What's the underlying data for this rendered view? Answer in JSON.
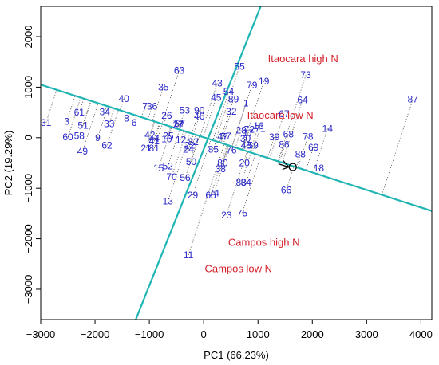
{
  "chart_data": {
    "type": "scatter",
    "subtype": "GGE biplot (which-won-where)",
    "xlabel": "PC1  (66.23%)",
    "ylabel": "PC2  (19.29%)",
    "xlim": [
      -3000,
      4200
    ],
    "ylim": [
      -3600,
      2600
    ],
    "x_ticks": [
      -3000,
      -2000,
      -1000,
      0,
      1000,
      2000,
      3000,
      4000
    ],
    "y_ticks": [
      -3000,
      -2000,
      -1000,
      0,
      1000,
      2000
    ],
    "grid": false,
    "colors": {
      "genotype_labels": "#2a28c8",
      "environment_labels": "#d4202a",
      "polygon_lines": "#1fb5b5",
      "projection_lines": "#555555",
      "axes": "#000000"
    },
    "genotypes": [
      {
        "id": "1",
        "x": 780,
        "y": 680
      },
      {
        "id": "3",
        "x": -2520,
        "y": 320
      },
      {
        "id": "6",
        "x": -1280,
        "y": 300
      },
      {
        "id": "7",
        "x": -1080,
        "y": 620
      },
      {
        "id": "8",
        "x": -1420,
        "y": 380
      },
      {
        "id": "9",
        "x": -1950,
        "y": 0
      },
      {
        "id": "10",
        "x": -680,
        "y": -30
      },
      {
        "id": "11",
        "x": -280,
        "y": -2320
      },
      {
        "id": "12",
        "x": -420,
        "y": -40
      },
      {
        "id": "13",
        "x": -660,
        "y": -1260
      },
      {
        "id": "14",
        "x": 2280,
        "y": 180
      },
      {
        "id": "15",
        "x": -830,
        "y": -600
      },
      {
        "id": "16",
        "x": 1010,
        "y": 230
      },
      {
        "id": "17",
        "x": 820,
        "y": 90
      },
      {
        "id": "18",
        "x": 2120,
        "y": -600
      },
      {
        "id": "19",
        "x": 1110,
        "y": 1120
      },
      {
        "id": "20",
        "x": 750,
        "y": -500
      },
      {
        "id": "21",
        "x": -1060,
        "y": -210
      },
      {
        "id": "22",
        "x": -260,
        "y": -150
      },
      {
        "id": "23",
        "x": 420,
        "y": -1530
      },
      {
        "id": "24",
        "x": -280,
        "y": -230
      },
      {
        "id": "25",
        "x": -650,
        "y": 40
      },
      {
        "id": "26",
        "x": -680,
        "y": 440
      },
      {
        "id": "27",
        "x": -470,
        "y": 260
      },
      {
        "id": "28",
        "x": 690,
        "y": 150
      },
      {
        "id": "29",
        "x": -200,
        "y": -1140
      },
      {
        "id": "30",
        "x": 770,
        "y": -20
      },
      {
        "id": "31",
        "x": -2900,
        "y": 300
      },
      {
        "id": "32",
        "x": 510,
        "y": 520
      },
      {
        "id": "33",
        "x": -1740,
        "y": 270
      },
      {
        "id": "34",
        "x": -1820,
        "y": 510
      },
      {
        "id": "35",
        "x": -740,
        "y": 1000
      },
      {
        "id": "36",
        "x": -950,
        "y": 620
      },
      {
        "id": "37",
        "x": 410,
        "y": 30
      },
      {
        "id": "38",
        "x": 310,
        "y": -620
      },
      {
        "id": "39",
        "x": 1300,
        "y": 10
      },
      {
        "id": "40",
        "x": -1470,
        "y": 770
      },
      {
        "id": "41",
        "x": -910,
        "y": -70
      },
      {
        "id": "42",
        "x": -990,
        "y": 50
      },
      {
        "id": "43",
        "x": 250,
        "y": 1080
      },
      {
        "id": "44",
        "x": -910,
        "y": -20
      },
      {
        "id": "45",
        "x": 230,
        "y": 790
      },
      {
        "id": "46",
        "x": -80,
        "y": 420
      },
      {
        "id": "47",
        "x": 350,
        "y": 20
      },
      {
        "id": "48",
        "x": 780,
        "y": -150
      },
      {
        "id": "49",
        "x": -2230,
        "y": -270
      },
      {
        "id": "50",
        "x": -230,
        "y": -480
      },
      {
        "id": "51",
        "x": -2220,
        "y": 240
      },
      {
        "id": "52",
        "x": -660,
        "y": -560
      },
      {
        "id": "53",
        "x": -350,
        "y": 540
      },
      {
        "id": "54",
        "x": 460,
        "y": 910
      },
      {
        "id": "55",
        "x": 660,
        "y": 1410
      },
      {
        "id": "56",
        "x": -340,
        "y": -790
      },
      {
        "id": "57",
        "x": -440,
        "y": 280
      },
      {
        "id": "58",
        "x": -2290,
        "y": 40
      },
      {
        "id": "59",
        "x": 910,
        "y": -150
      },
      {
        "id": "60",
        "x": -2500,
        "y": 10
      },
      {
        "id": "61",
        "x": -2290,
        "y": 500
      },
      {
        "id": "62",
        "x": -1780,
        "y": -150
      },
      {
        "id": "63",
        "x": -450,
        "y": 1330
      },
      {
        "id": "64",
        "x": 1820,
        "y": 750
      },
      {
        "id": "65",
        "x": 130,
        "y": -1140
      },
      {
        "id": "66",
        "x": 1520,
        "y": -1040
      },
      {
        "id": "67",
        "x": 1480,
        "y": 470
      },
      {
        "id": "68",
        "x": 1560,
        "y": 70
      },
      {
        "id": "69",
        "x": 2020,
        "y": -190
      },
      {
        "id": "70",
        "x": -590,
        "y": -780
      },
      {
        "id": "71",
        "x": 1040,
        "y": 180
      },
      {
        "id": "72",
        "x": 840,
        "y": 160
      },
      {
        "id": "73",
        "x": 1880,
        "y": 1240
      },
      {
        "id": "74",
        "x": 190,
        "y": -1100
      },
      {
        "id": "75",
        "x": 710,
        "y": -1490
      },
      {
        "id": "76",
        "x": 510,
        "y": -250
      },
      {
        "id": "77",
        "x": -470,
        "y": 280
      },
      {
        "id": "78",
        "x": 1920,
        "y": 20
      },
      {
        "id": "79",
        "x": 890,
        "y": 1040
      },
      {
        "id": "80",
        "x": 350,
        "y": -500
      },
      {
        "id": "81",
        "x": -910,
        "y": -210
      },
      {
        "id": "82",
        "x": -190,
        "y": -80
      },
      {
        "id": "83",
        "x": 690,
        "y": -890
      },
      {
        "id": "84",
        "x": 780,
        "y": -890
      },
      {
        "id": "85",
        "x": 180,
        "y": -230
      },
      {
        "id": "86",
        "x": 1480,
        "y": -140
      },
      {
        "id": "87",
        "x": 3850,
        "y": 760
      },
      {
        "id": "88",
        "x": 1780,
        "y": -330
      },
      {
        "id": "89",
        "x": 550,
        "y": 760
      },
      {
        "id": "90",
        "x": -80,
        "y": 540
      }
    ],
    "environments": [
      {
        "name": "Itaocara high N",
        "x": 1830,
        "y": 1560
      },
      {
        "name": "Itaocara low N",
        "x": 1410,
        "y": 440
      },
      {
        "name": "Campos high N",
        "x": 1110,
        "y": -2080
      },
      {
        "name": "Campos low N",
        "x": 640,
        "y": -2600
      }
    ],
    "average_environment_marker": {
      "x": 1640,
      "y": -580
    },
    "polygon_lines": [
      {
        "from": [
          -3000,
          1050
        ],
        "to": [
          4200,
          -1450
        ]
      },
      {
        "from": [
          1050,
          2600
        ],
        "to": [
          -1250,
          -3600
        ]
      }
    ]
  }
}
